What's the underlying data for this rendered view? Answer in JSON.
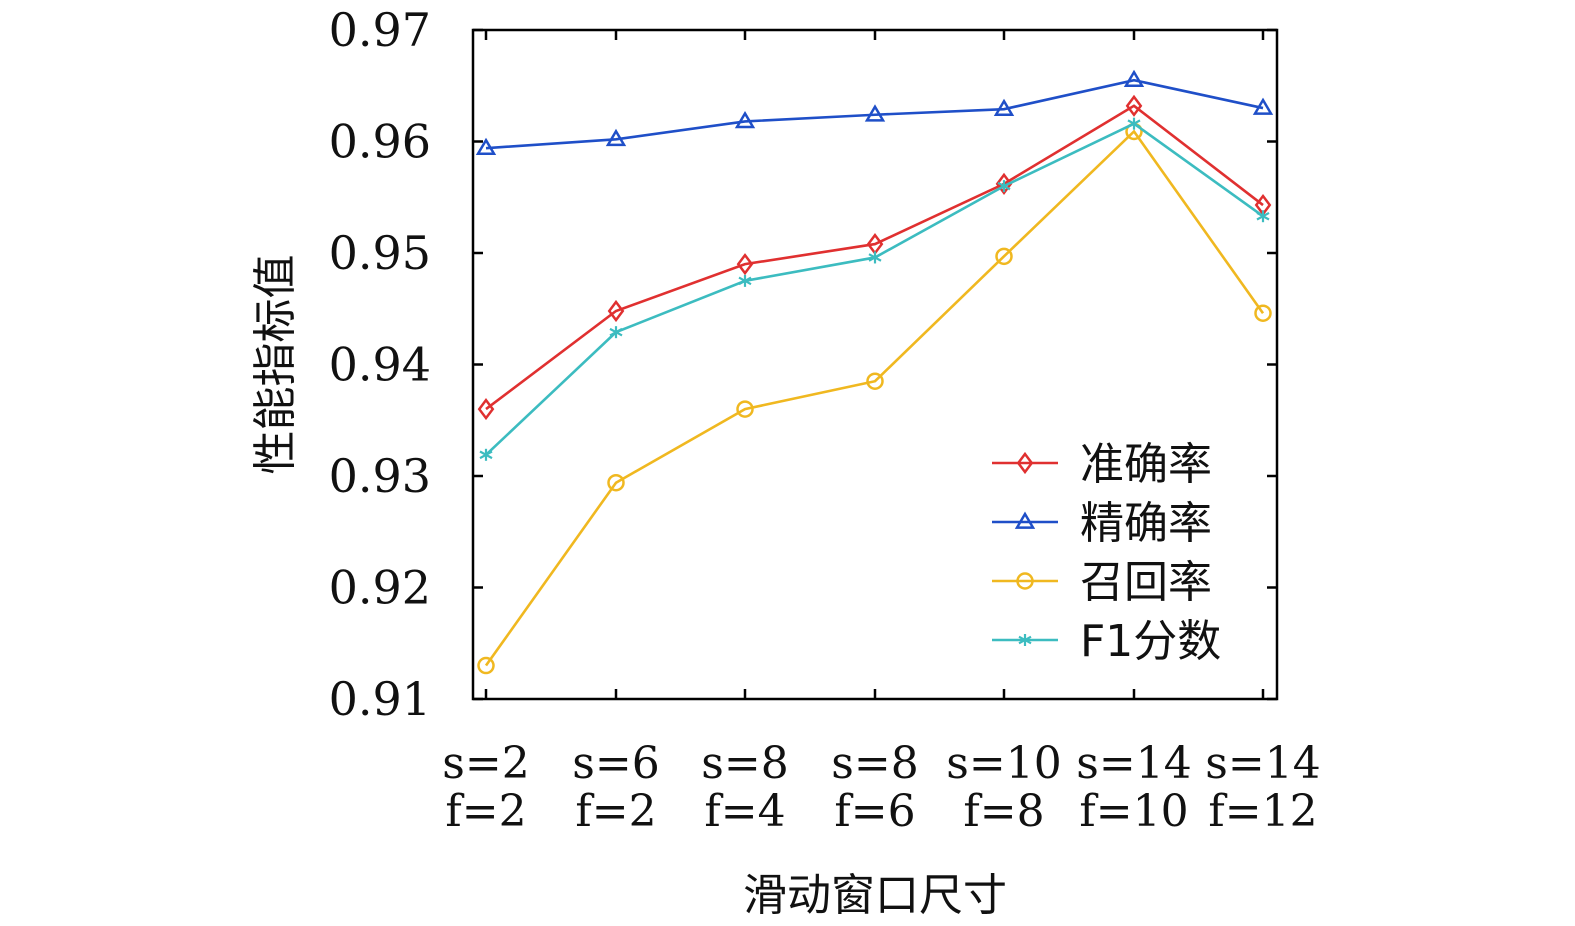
{
  "chart_data": {
    "type": "line",
    "title": "",
    "xlabel": "滑动窗口尺寸",
    "ylabel": "性能指标值",
    "ylim": [
      0.91,
      0.97
    ],
    "yticks": [
      "0.91",
      "0.92",
      "0.93",
      "0.94",
      "0.95",
      "0.96",
      "0.97"
    ],
    "categories": [
      {
        "s": "s=2",
        "f": "f=2"
      },
      {
        "s": "s=6",
        "f": "f=2"
      },
      {
        "s": "s=8",
        "f": "f=4"
      },
      {
        "s": "s=8",
        "f": "f=6"
      },
      {
        "s": "s=10",
        "f": "f=8"
      },
      {
        "s": "s=14",
        "f": "f=10"
      },
      {
        "s": "s=14",
        "f": "f=12"
      }
    ],
    "legend_position": "bottom-right",
    "grid": false,
    "series": [
      {
        "name": "准确率",
        "color": "#e03030",
        "marker": "diamond",
        "values": [
          0.936,
          0.9448,
          0.949,
          0.9508,
          0.9562,
          0.9632,
          0.9543
        ]
      },
      {
        "name": "精确率",
        "color": "#1f4fc8",
        "marker": "triangle",
        "values": [
          0.9594,
          0.9602,
          0.9618,
          0.9624,
          0.9629,
          0.9655,
          0.963
        ]
      },
      {
        "name": "召回率",
        "color": "#f0b820",
        "marker": "circle",
        "values": [
          0.913,
          0.9294,
          0.936,
          0.9385,
          0.9497,
          0.9609,
          0.9446
        ]
      },
      {
        "name": "F1分数",
        "color": "#3cbcc0",
        "marker": "asterisk",
        "values": [
          0.9319,
          0.9429,
          0.9475,
          0.9496,
          0.956,
          0.9616,
          0.9533
        ]
      }
    ]
  }
}
